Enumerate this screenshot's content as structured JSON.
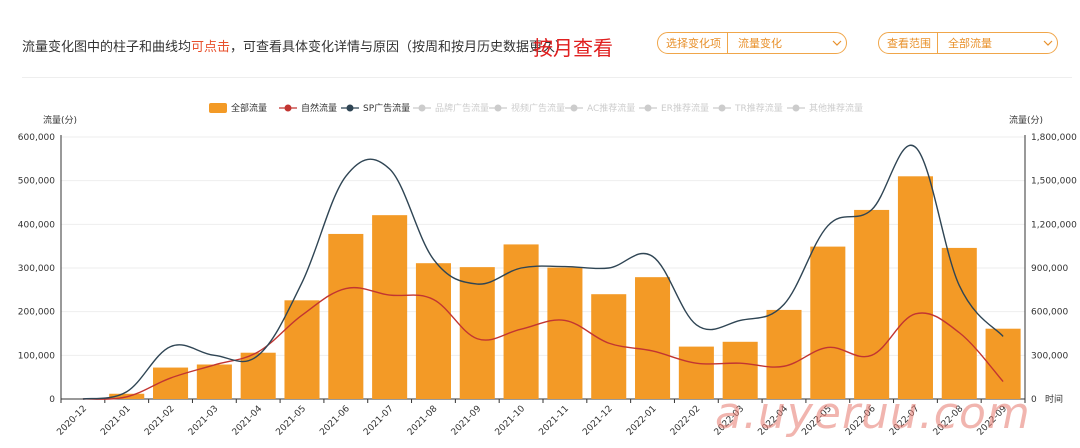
{
  "header": {
    "intro_text": "流量变化图中的柱子和曲线均",
    "intro_highlight": "可点击",
    "intro_rest": "，可查看具体变化详情与原因（按周和按月历史数据更久）",
    "monthly_label": "按月查看",
    "select_change": {
      "label": "选择变化项",
      "value": "流量变化"
    },
    "select_range": {
      "label": "查看范围",
      "value": "全部流量"
    }
  },
  "colors": {
    "bar": "#f39a26",
    "natural": "#c23531",
    "sp": "#2f4554",
    "inactive": "#cccccc",
    "accent": "#e8902a"
  },
  "watermark": "a.uyeruu.com",
  "chart_data": {
    "type": "bar",
    "left_axis": {
      "label": "流量(分)",
      "min": 0,
      "max": 600000,
      "ticks": [
        "0",
        "100,000",
        "200,000",
        "300,000",
        "400,000",
        "500,000",
        "600,000"
      ]
    },
    "right_axis": {
      "label": "流量(分)",
      "min": 0,
      "max": 1800000,
      "ticks": [
        "0",
        "300,000",
        "600,000",
        "900,000",
        "1,200,000",
        "1,500,000",
        "1,800,000"
      ],
      "x_end_label": "时间"
    },
    "categories": [
      "2020-12",
      "2021-01",
      "2021-02",
      "2021-03",
      "2021-04",
      "2021-05",
      "2021-06",
      "2021-07",
      "2021-08",
      "2021-09",
      "2021-10",
      "2021-11",
      "2021-12",
      "2022-01",
      "2022-02",
      "2022-03",
      "2022-04",
      "2022-05",
      "2022-06",
      "2022-07",
      "2022-08",
      "2022-09"
    ],
    "legend": [
      {
        "name": "全部流量",
        "active": true,
        "kind": "bar"
      },
      {
        "name": "自然流量",
        "active": true,
        "kind": "line"
      },
      {
        "name": "SP广告流量",
        "active": true,
        "kind": "line"
      },
      {
        "name": "品牌广告流量",
        "active": false,
        "kind": "line"
      },
      {
        "name": "视频广告流量",
        "active": false,
        "kind": "line"
      },
      {
        "name": "AC推荐流量",
        "active": false,
        "kind": "line"
      },
      {
        "name": "ER推荐流量",
        "active": false,
        "kind": "line"
      },
      {
        "name": "TR推荐流量",
        "active": false,
        "kind": "line"
      },
      {
        "name": "其他推荐流量",
        "active": false,
        "kind": "line"
      }
    ],
    "series": [
      {
        "name": "全部流量",
        "axis": "left",
        "values": [
          0,
          12000,
          72000,
          79000,
          106000,
          226000,
          378000,
          421000,
          311000,
          302000,
          354000,
          301000,
          240000,
          279000,
          120000,
          131000,
          204000,
          349000,
          433000,
          510000,
          346000,
          161000
        ]
      },
      {
        "name": "自然流量",
        "axis": "left",
        "values": [
          0,
          5000,
          48000,
          78000,
          108000,
          192000,
          253000,
          238000,
          228000,
          138000,
          160000,
          180000,
          128000,
          110000,
          82000,
          82000,
          75000,
          118000,
          100000,
          195000,
          152000,
          40000
        ]
      },
      {
        "name": "SP广告流量",
        "axis": "right",
        "values": [
          0,
          50000,
          360000,
          300000,
          300000,
          800000,
          1530000,
          1580000,
          960000,
          790000,
          900000,
          910000,
          900000,
          980000,
          510000,
          540000,
          650000,
          1190000,
          1300000,
          1730000,
          780000,
          430000
        ]
      }
    ]
  }
}
